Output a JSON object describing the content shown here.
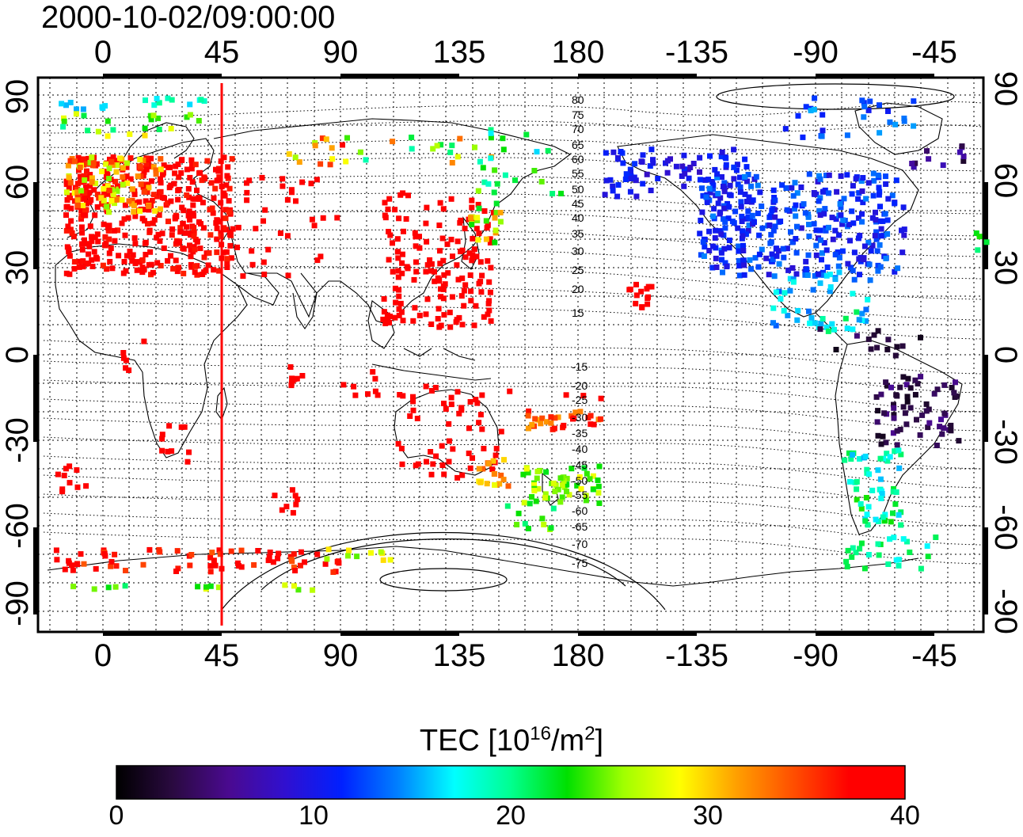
{
  "title": "2000-10-02/09:00:00",
  "lon_ticks": [
    "0",
    "45",
    "90",
    "135",
    "180",
    "-135",
    "-90",
    "-45"
  ],
  "lat_ticks": [
    "90",
    "60",
    "30",
    "0",
    "-30",
    "-60",
    "-90"
  ],
  "colorbar": {
    "label_prefix": "TEC  [10",
    "label_exp1": "16",
    "label_mid": "/m",
    "label_exp2": "2",
    "label_suffix": "]",
    "ticks": [
      "0",
      "10",
      "20",
      "30",
      "40"
    ],
    "stops": [
      "#000000",
      "#2a0a40",
      "#4a0a90",
      "#3010d0",
      "#0020ff",
      "#0080ff",
      "#00ffff",
      "#00ff90",
      "#00e000",
      "#a0ff00",
      "#ffff00",
      "#ffa000",
      "#ff5000",
      "#ff0000",
      "#ff0000"
    ]
  },
  "contour_labels_north": [
    "80",
    "75",
    "70",
    "65",
    "60",
    "55",
    "50",
    "45",
    "40",
    "35",
    "30",
    "25",
    "20",
    "15"
  ],
  "contour_labels_south": [
    "-15",
    "-20",
    "-25",
    "-30",
    "-35",
    "-40",
    "-45",
    "-50",
    "-55",
    "-60",
    "-65",
    "-70",
    "-75"
  ],
  "marker_longitude": 45,
  "colors": {
    "marker": "#ff0000",
    "frame": "#000000"
  }
}
